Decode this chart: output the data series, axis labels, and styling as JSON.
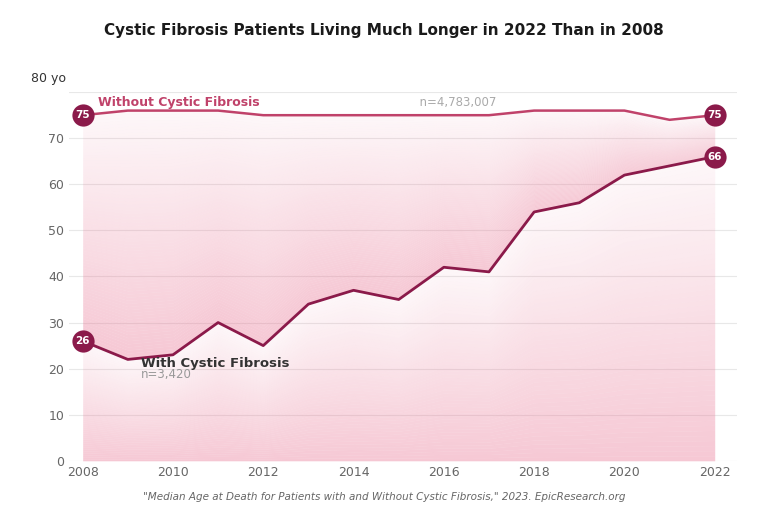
{
  "title": "Cystic Fibrosis Patients Living Much Longer in 2022 Than in 2008",
  "subtitle": "\"Median Age at Death for Patients with and Without Cystic Fibrosis,\" 2023. EpicResearch.org",
  "years": [
    2008,
    2009,
    2010,
    2011,
    2012,
    2013,
    2014,
    2015,
    2016,
    2017,
    2018,
    2019,
    2020,
    2021,
    2022
  ],
  "cf_values": [
    26,
    22,
    23,
    30,
    25,
    34,
    37,
    35,
    42,
    41,
    54,
    56,
    62,
    64,
    66
  ],
  "no_cf_values": [
    75,
    76,
    76,
    76,
    75,
    75,
    75,
    75,
    75,
    75,
    76,
    76,
    76,
    74,
    75
  ],
  "cf_line_color": "#8B1A4A",
  "no_cf_line_color": "#C0426A",
  "fill_base_color": "#e87090",
  "background_color": "#ffffff",
  "ylim": [
    0,
    80
  ],
  "yticks": [
    0,
    10,
    20,
    30,
    40,
    50,
    60,
    70,
    80
  ],
  "no_cf_label": "Without Cystic Fibrosis",
  "no_cf_n": "n=4,783,007",
  "cf_label": "With Cystic Fibrosis",
  "cf_n": "n=3,420",
  "badge_color": "#8B1A4A",
  "grid_color": "#e8e8e8",
  "text_color": "#333333",
  "title_fontsize": 11
}
